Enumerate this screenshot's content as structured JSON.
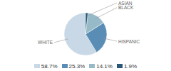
{
  "chart_data": {
    "type": "pie",
    "categories": [
      "WHITE",
      "HISPANIC",
      "BLACK",
      "ASIAN"
    ],
    "values": [
      58.7,
      25.3,
      14.1,
      1.9
    ],
    "value_labels": [
      "58.7%",
      "25.3%",
      "14.1%",
      "1.9%"
    ],
    "colors": [
      "#c8d8e6",
      "#5a8db5",
      "#97bac8",
      "#2a5878"
    ],
    "legend": "bottom"
  }
}
